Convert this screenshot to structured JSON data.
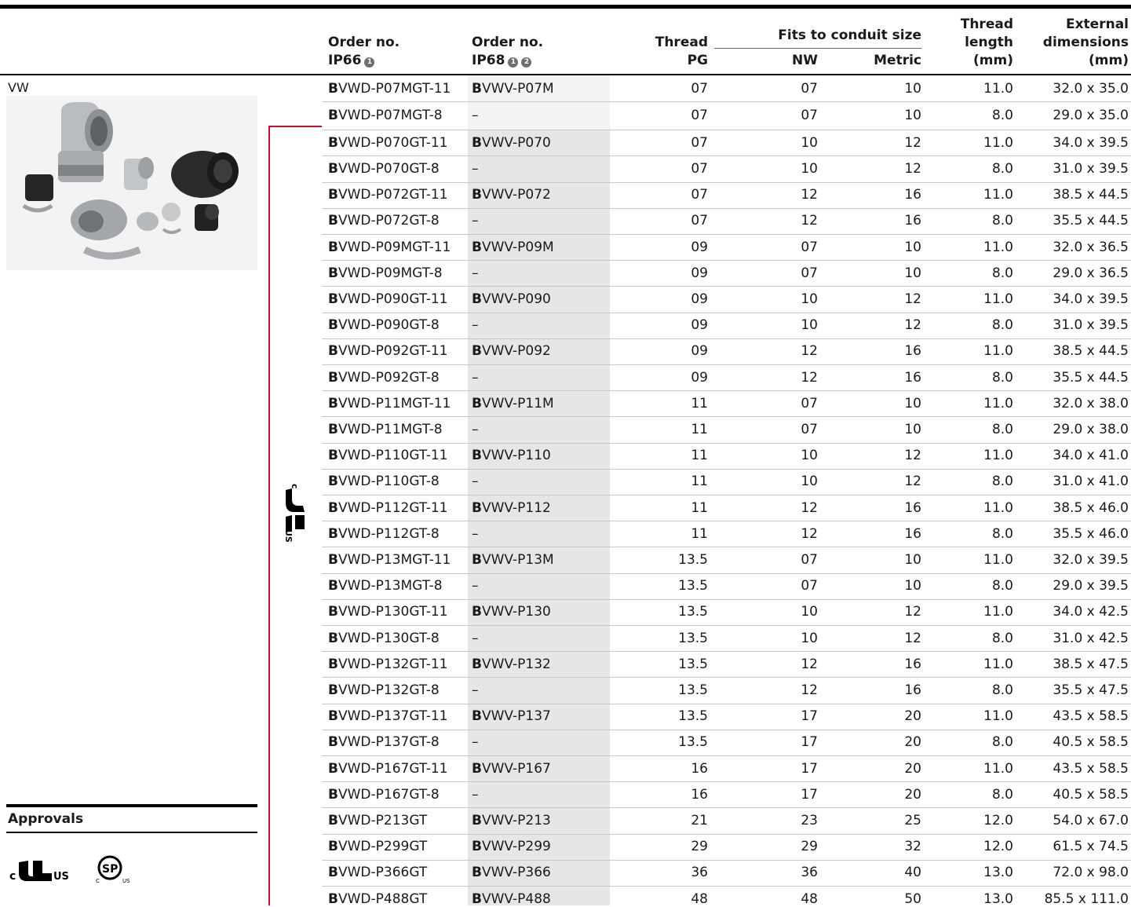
{
  "headers": {
    "order_no_1": "Order no.",
    "ip66": "IP66",
    "order_no_2": "Order no.",
    "ip68": "IP68",
    "footnote_1": "1",
    "footnote_2": "2",
    "thread": "Thread",
    "pg": "PG",
    "fits": "Fits to conduit size",
    "nw": "NW",
    "metric": "Metric",
    "thread_length_1": "Thread",
    "thread_length_2": "length",
    "thread_length_3": "(mm)",
    "ext_1": "External",
    "ext_2": "dimensions",
    "ext_3": "(mm)"
  },
  "section_label": "VW",
  "approvals_label": "Approvals",
  "rows": [
    {
      "ip66_prefix": "B",
      "ip66": "VWD-P07MGT-11",
      "ip68_prefix": "B",
      "ip68": "VWV-P07M",
      "pg": "07",
      "nw": "07",
      "metric": "10",
      "len": "11.0",
      "dim": "32.0 x 35.0"
    },
    {
      "ip66_prefix": "B",
      "ip66": "VWD-P07MGT-8",
      "ip68_prefix": "",
      "ip68": "–",
      "pg": "07",
      "nw": "07",
      "metric": "10",
      "len": "8.0",
      "dim": "29.0 x 35.0"
    },
    {
      "ip66_prefix": "B",
      "ip66": "VWD-P070GT-11",
      "ip68_prefix": "B",
      "ip68": "VWV-P070",
      "pg": "07",
      "nw": "10",
      "metric": "12",
      "len": "11.0",
      "dim": "34.0 x 39.5"
    },
    {
      "ip66_prefix": "B",
      "ip66": "VWD-P070GT-8",
      "ip68_prefix": "",
      "ip68": "–",
      "pg": "07",
      "nw": "10",
      "metric": "12",
      "len": "8.0",
      "dim": "31.0 x 39.5"
    },
    {
      "ip66_prefix": "B",
      "ip66": "VWD-P072GT-11",
      "ip68_prefix": "B",
      "ip68": "VWV-P072",
      "pg": "07",
      "nw": "12",
      "metric": "16",
      "len": "11.0",
      "dim": "38.5 x 44.5"
    },
    {
      "ip66_prefix": "B",
      "ip66": "VWD-P072GT-8",
      "ip68_prefix": "",
      "ip68": "–",
      "pg": "07",
      "nw": "12",
      "metric": "16",
      "len": "8.0",
      "dim": "35.5 x 44.5"
    },
    {
      "ip66_prefix": "B",
      "ip66": "VWD-P09MGT-11",
      "ip68_prefix": "B",
      "ip68": "VWV-P09M",
      "pg": "09",
      "nw": "07",
      "metric": "10",
      "len": "11.0",
      "dim": "32.0 x 36.5"
    },
    {
      "ip66_prefix": "B",
      "ip66": "VWD-P09MGT-8",
      "ip68_prefix": "",
      "ip68": "–",
      "pg": "09",
      "nw": "07",
      "metric": "10",
      "len": "8.0",
      "dim": "29.0 x 36.5"
    },
    {
      "ip66_prefix": "B",
      "ip66": "VWD-P090GT-11",
      "ip68_prefix": "B",
      "ip68": "VWV-P090",
      "pg": "09",
      "nw": "10",
      "metric": "12",
      "len": "11.0",
      "dim": "34.0 x 39.5"
    },
    {
      "ip66_prefix": "B",
      "ip66": "VWD-P090GT-8",
      "ip68_prefix": "",
      "ip68": "–",
      "pg": "09",
      "nw": "10",
      "metric": "12",
      "len": "8.0",
      "dim": "31.0 x 39.5"
    },
    {
      "ip66_prefix": "B",
      "ip66": "VWD-P092GT-11",
      "ip68_prefix": "B",
      "ip68": "VWV-P092",
      "pg": "09",
      "nw": "12",
      "metric": "16",
      "len": "11.0",
      "dim": "38.5 x 44.5"
    },
    {
      "ip66_prefix": "B",
      "ip66": "VWD-P092GT-8",
      "ip68_prefix": "",
      "ip68": "–",
      "pg": "09",
      "nw": "12",
      "metric": "16",
      "len": "8.0",
      "dim": "35.5 x 44.5"
    },
    {
      "ip66_prefix": "B",
      "ip66": "VWD-P11MGT-11",
      "ip68_prefix": "B",
      "ip68": "VWV-P11M",
      "pg": "11",
      "nw": "07",
      "metric": "10",
      "len": "11.0",
      "dim": "32.0 x 38.0"
    },
    {
      "ip66_prefix": "B",
      "ip66": "VWD-P11MGT-8",
      "ip68_prefix": "",
      "ip68": "–",
      "pg": "11",
      "nw": "07",
      "metric": "10",
      "len": "8.0",
      "dim": "29.0 x 38.0"
    },
    {
      "ip66_prefix": "B",
      "ip66": "VWD-P110GT-11",
      "ip68_prefix": "B",
      "ip68": "VWV-P110",
      "pg": "11",
      "nw": "10",
      "metric": "12",
      "len": "11.0",
      "dim": "34.0 x 41.0"
    },
    {
      "ip66_prefix": "B",
      "ip66": "VWD-P110GT-8",
      "ip68_prefix": "",
      "ip68": "–",
      "pg": "11",
      "nw": "10",
      "metric": "12",
      "len": "8.0",
      "dim": "31.0 x 41.0"
    },
    {
      "ip66_prefix": "B",
      "ip66": "VWD-P112GT-11",
      "ip68_prefix": "B",
      "ip68": "VWV-P112",
      "pg": "11",
      "nw": "12",
      "metric": "16",
      "len": "11.0",
      "dim": "38.5 x 46.0"
    },
    {
      "ip66_prefix": "B",
      "ip66": "VWD-P112GT-8",
      "ip68_prefix": "",
      "ip68": "–",
      "pg": "11",
      "nw": "12",
      "metric": "16",
      "len": "8.0",
      "dim": "35.5 x 46.0"
    },
    {
      "ip66_prefix": "B",
      "ip66": "VWD-P13MGT-11",
      "ip68_prefix": "B",
      "ip68": "VWV-P13M",
      "pg": "13.5",
      "nw": "07",
      "metric": "10",
      "len": "11.0",
      "dim": "32.0 x 39.5"
    },
    {
      "ip66_prefix": "B",
      "ip66": "VWD-P13MGT-8",
      "ip68_prefix": "",
      "ip68": "–",
      "pg": "13.5",
      "nw": "07",
      "metric": "10",
      "len": "8.0",
      "dim": "29.0 x 39.5"
    },
    {
      "ip66_prefix": "B",
      "ip66": "VWD-P130GT-11",
      "ip68_prefix": "B",
      "ip68": "VWV-P130",
      "pg": "13.5",
      "nw": "10",
      "metric": "12",
      "len": "11.0",
      "dim": "34.0 x 42.5"
    },
    {
      "ip66_prefix": "B",
      "ip66": "VWD-P130GT-8",
      "ip68_prefix": "",
      "ip68": "–",
      "pg": "13.5",
      "nw": "10",
      "metric": "12",
      "len": "8.0",
      "dim": "31.0 x 42.5"
    },
    {
      "ip66_prefix": "B",
      "ip66": "VWD-P132GT-11",
      "ip68_prefix": "B",
      "ip68": "VWV-P132",
      "pg": "13.5",
      "nw": "12",
      "metric": "16",
      "len": "11.0",
      "dim": "38.5 x 47.5"
    },
    {
      "ip66_prefix": "B",
      "ip66": "VWD-P132GT-8",
      "ip68_prefix": "",
      "ip68": "–",
      "pg": "13.5",
      "nw": "12",
      "metric": "16",
      "len": "8.0",
      "dim": "35.5 x 47.5"
    },
    {
      "ip66_prefix": "B",
      "ip66": "VWD-P137GT-11",
      "ip68_prefix": "B",
      "ip68": "VWV-P137",
      "pg": "13.5",
      "nw": "17",
      "metric": "20",
      "len": "11.0",
      "dim": "43.5 x 58.5"
    },
    {
      "ip66_prefix": "B",
      "ip66": "VWD-P137GT-8",
      "ip68_prefix": "",
      "ip68": "–",
      "pg": "13.5",
      "nw": "17",
      "metric": "20",
      "len": "8.0",
      "dim": "40.5 x 58.5"
    },
    {
      "ip66_prefix": "B",
      "ip66": "VWD-P167GT-11",
      "ip68_prefix": "B",
      "ip68": "VWV-P167",
      "pg": "16",
      "nw": "17",
      "metric": "20",
      "len": "11.0",
      "dim": "43.5 x 58.5"
    },
    {
      "ip66_prefix": "B",
      "ip66": "VWD-P167GT-8",
      "ip68_prefix": "",
      "ip68": "–",
      "pg": "16",
      "nw": "17",
      "metric": "20",
      "len": "8.0",
      "dim": "40.5 x 58.5"
    },
    {
      "ip66_prefix": "B",
      "ip66": "VWD-P213GT",
      "ip68_prefix": "B",
      "ip68": "VWV-P213",
      "pg": "21",
      "nw": "23",
      "metric": "25",
      "len": "12.0",
      "dim": "54.0 x 67.0"
    },
    {
      "ip66_prefix": "B",
      "ip66": "VWD-P299GT",
      "ip68_prefix": "B",
      "ip68": "VWV-P299",
      "pg": "29",
      "nw": "29",
      "metric": "32",
      "len": "12.0",
      "dim": "61.5 x 74.5"
    },
    {
      "ip66_prefix": "B",
      "ip66": "VWD-P366GT",
      "ip68_prefix": "B",
      "ip68": "VWV-P366",
      "pg": "36",
      "nw": "36",
      "metric": "40",
      "len": "13.0",
      "dim": "72.0 x 98.0"
    },
    {
      "ip66_prefix": "B",
      "ip66": "VWD-P488GT",
      "ip68_prefix": "B",
      "ip68": "VWV-P488",
      "pg": "48",
      "nw": "48",
      "metric": "50",
      "len": "13.0",
      "dim": "85.5 x 111.0"
    }
  ],
  "colors": {
    "rule": "#000000",
    "shade": "#e6e6e6",
    "red": "#c8102e",
    "grid": "#c8c8c8"
  },
  "icons": [
    "ul-recognized-icon",
    "csa-icon",
    "circled-one-icon",
    "circled-two-icon"
  ]
}
